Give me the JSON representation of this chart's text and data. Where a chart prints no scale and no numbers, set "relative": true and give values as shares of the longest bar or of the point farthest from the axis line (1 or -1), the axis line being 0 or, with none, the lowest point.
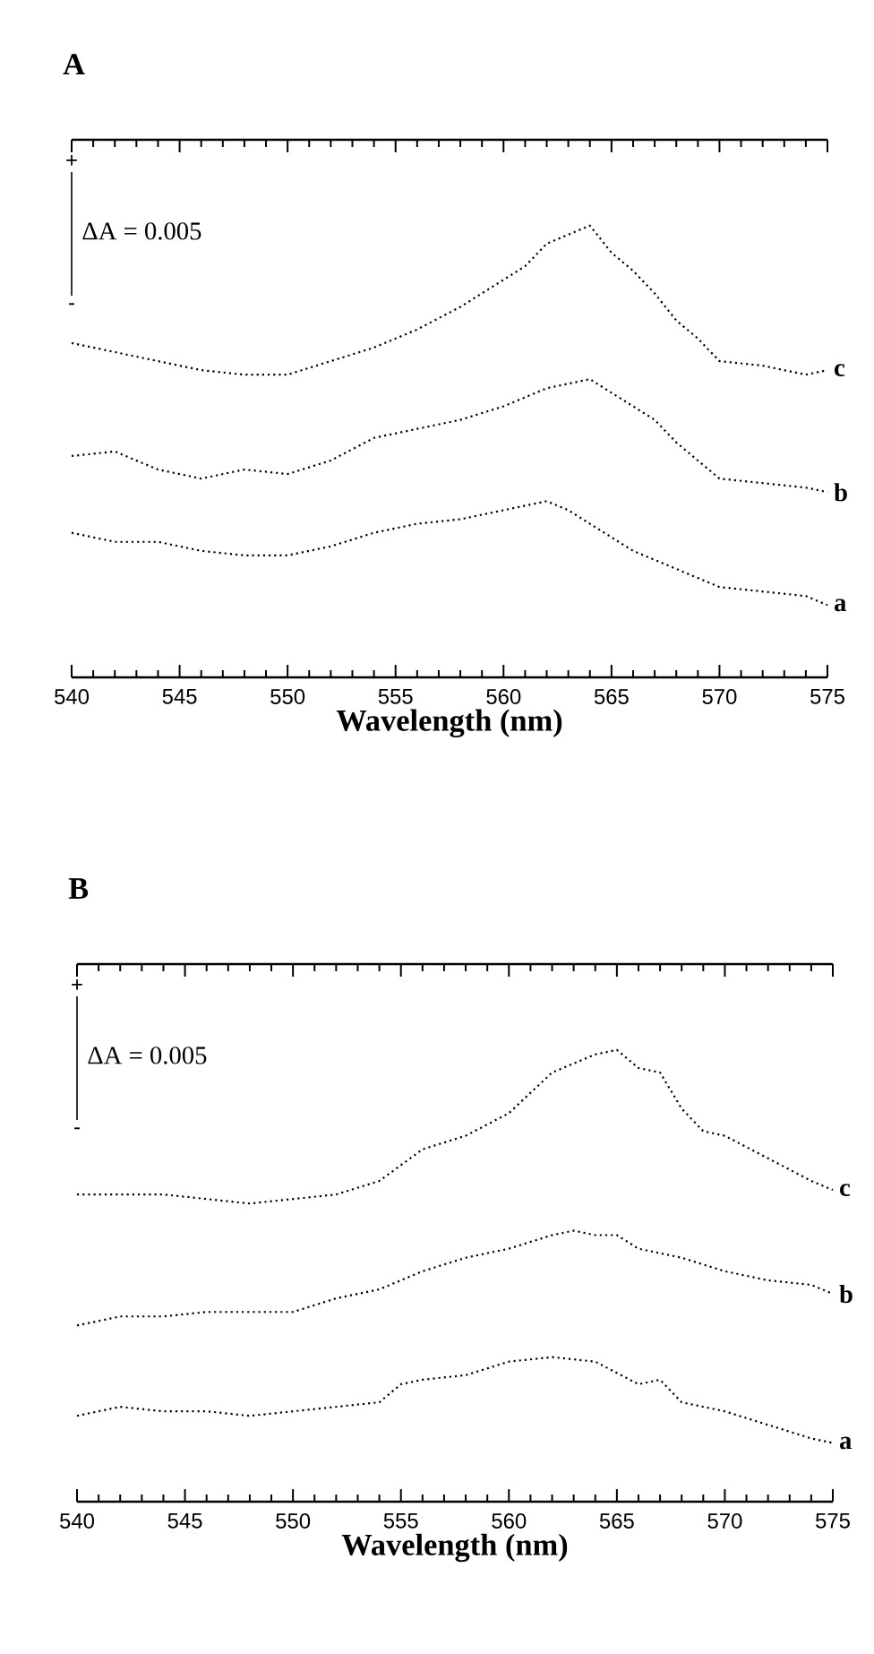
{
  "chart_data": [
    {
      "type": "line",
      "title": "A",
      "xlabel": "Wavelength (nm)",
      "relative": true,
      "line_style": "dotted",
      "xlim": [
        540,
        575
      ],
      "xticks": [
        540,
        545,
        550,
        555,
        560,
        565,
        570,
        575
      ],
      "annotations": [
        "+",
        "ΔA = 0.005",
        "-"
      ],
      "series": [
        {
          "name": "c",
          "color": "#000000",
          "x": [
            540,
            542,
            544,
            546,
            548,
            550,
            552,
            554,
            556,
            558,
            560,
            561,
            562,
            563,
            564,
            565,
            566,
            567,
            568,
            569,
            570,
            572,
            574,
            575
          ],
          "values": [
            0.74,
            0.72,
            0.7,
            0.68,
            0.67,
            0.67,
            0.7,
            0.73,
            0.77,
            0.82,
            0.88,
            0.91,
            0.96,
            0.98,
            1.0,
            0.94,
            0.9,
            0.85,
            0.79,
            0.75,
            0.7,
            0.69,
            0.67,
            0.68
          ]
        },
        {
          "name": "b",
          "color": "#000000",
          "x": [
            540,
            542,
            544,
            546,
            548,
            550,
            552,
            554,
            556,
            558,
            560,
            562,
            563,
            564,
            565,
            566,
            567,
            568,
            569,
            570,
            572,
            574,
            575
          ],
          "values": [
            0.49,
            0.5,
            0.46,
            0.44,
            0.46,
            0.45,
            0.48,
            0.53,
            0.55,
            0.57,
            0.6,
            0.64,
            0.65,
            0.66,
            0.63,
            0.6,
            0.57,
            0.52,
            0.48,
            0.44,
            0.43,
            0.42,
            0.41
          ]
        },
        {
          "name": "a",
          "color": "#000000",
          "x": [
            540,
            542,
            544,
            546,
            548,
            550,
            552,
            554,
            556,
            558,
            560,
            561,
            562,
            563,
            564,
            565,
            566,
            567,
            568,
            570,
            572,
            574,
            575
          ],
          "values": [
            0.32,
            0.3,
            0.3,
            0.28,
            0.27,
            0.27,
            0.29,
            0.32,
            0.34,
            0.35,
            0.37,
            0.38,
            0.39,
            0.37,
            0.34,
            0.31,
            0.28,
            0.26,
            0.24,
            0.2,
            0.19,
            0.18,
            0.16
          ]
        }
      ]
    },
    {
      "type": "line",
      "title": "B",
      "xlabel": "Wavelength (nm)",
      "relative": true,
      "line_style": "dotted",
      "xlim": [
        540,
        575
      ],
      "xticks": [
        540,
        545,
        550,
        555,
        560,
        565,
        570,
        575
      ],
      "annotations": [
        "+",
        "ΔA =  0.005",
        "-"
      ],
      "series": [
        {
          "name": "c",
          "color": "#000000",
          "x": [
            540,
            542,
            544,
            546,
            548,
            550,
            552,
            554,
            556,
            558,
            560,
            562,
            563,
            564,
            565,
            566,
            567,
            568,
            569,
            570,
            572,
            574,
            575
          ],
          "values": [
            0.68,
            0.68,
            0.68,
            0.67,
            0.66,
            0.67,
            0.68,
            0.71,
            0.78,
            0.81,
            0.86,
            0.95,
            0.97,
            0.99,
            1.0,
            0.96,
            0.95,
            0.87,
            0.82,
            0.81,
            0.76,
            0.71,
            0.69
          ]
        },
        {
          "name": "b",
          "color": "#000000",
          "x": [
            540,
            542,
            544,
            546,
            548,
            550,
            552,
            554,
            556,
            558,
            560,
            562,
            563,
            564,
            565,
            566,
            568,
            570,
            572,
            574,
            575
          ],
          "values": [
            0.39,
            0.41,
            0.41,
            0.42,
            0.42,
            0.42,
            0.45,
            0.47,
            0.51,
            0.54,
            0.56,
            0.59,
            0.6,
            0.59,
            0.59,
            0.56,
            0.54,
            0.51,
            0.49,
            0.48,
            0.46
          ]
        },
        {
          "name": "a",
          "color": "#000000",
          "x": [
            540,
            542,
            544,
            546,
            548,
            550,
            552,
            554,
            555,
            556,
            558,
            560,
            562,
            564,
            566,
            567,
            568,
            570,
            572,
            574,
            575
          ],
          "values": [
            0.19,
            0.21,
            0.2,
            0.2,
            0.19,
            0.2,
            0.21,
            0.22,
            0.26,
            0.27,
            0.28,
            0.31,
            0.32,
            0.31,
            0.26,
            0.27,
            0.22,
            0.2,
            0.17,
            0.14,
            0.13
          ]
        }
      ]
    }
  ]
}
